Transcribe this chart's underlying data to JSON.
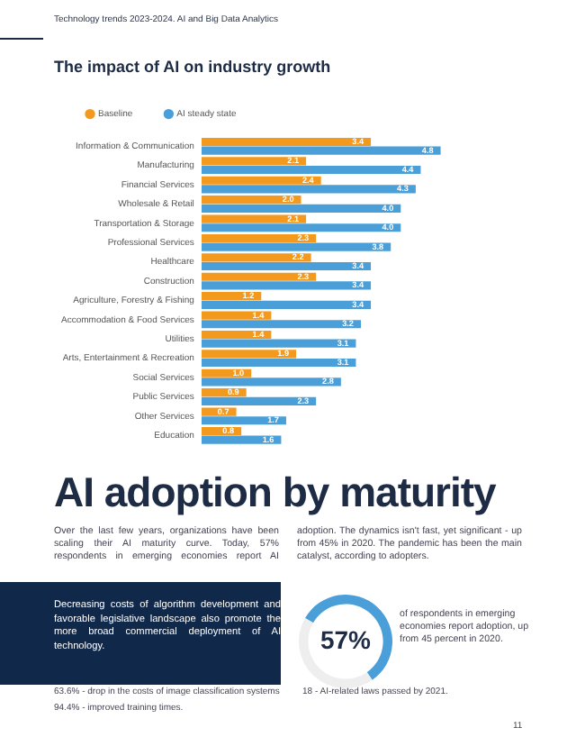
{
  "chart_data": [
    {
      "type": "bar",
      "orientation": "horizontal",
      "title": "The impact of AI on industry growth",
      "annotations": [
        "Technology trends 2023-2024. AI and Big Data Analytics"
      ],
      "categories": [
        "Information & Communication",
        "Manufacturing",
        "Financial Services",
        "Wholesale & Retail",
        "Transportation & Storage",
        "Professional Services",
        "Healthcare",
        "Construction",
        "Agriculture, Forestry & Fishing",
        "Accommodation & Food Services",
        "Utilities",
        "Arts, Entertainment & Recreation",
        "Social Services",
        "Public Services",
        "Other Services",
        "Education"
      ],
      "series": [
        {
          "name": "Baseline",
          "color": "#f39a1e",
          "values": [
            3.4,
            2.1,
            2.4,
            2.0,
            2.1,
            2.3,
            2.2,
            2.3,
            1.2,
            1.4,
            1.4,
            1.9,
            1.0,
            0.9,
            0.7,
            0.8
          ],
          "value_labels": [
            "3.4",
            "2.1",
            "2.4",
            "2.0",
            "2.1",
            "2.3",
            "2.2",
            "2.3",
            "1.2",
            "1.4",
            "1.4",
            "1.9",
            "1.0",
            "0.9",
            "0.7",
            "0.8"
          ]
        },
        {
          "name": "AI steady state",
          "color": "#4a9fd8",
          "values": [
            4.8,
            4.4,
            4.3,
            4.0,
            4.0,
            3.8,
            3.4,
            3.4,
            3.4,
            3.2,
            3.1,
            3.1,
            2.8,
            2.3,
            1.7,
            1.6
          ],
          "value_labels": [
            "4.8",
            "4.4",
            "4.3",
            "4.0",
            "4.0",
            "3.8",
            "3.4",
            "3.4",
            "3.4",
            "3.2",
            "3.1",
            "3.1",
            "2.8",
            "2.3",
            "1.7",
            "1.6"
          ]
        }
      ],
      "legend": "top left",
      "tick_labels": "y",
      "grid": false
    },
    {
      "type": "donut",
      "title": "AI adoption by maturity",
      "categories": [
        null,
        null
      ],
      "values": [
        57,
        43
      ],
      "colors": [
        "#4a9fd8",
        "#eeeeee"
      ],
      "value_labels": [
        "57%",
        null
      ],
      "annotations": [
        "Over the last few years, organizations have been scaling their AI maturity curve. Today, 57% respondents in emerging economies report AI adoption. The dynamics isn't fast, yet significant - up from 45% in 2020. The pandemic has been the main catalyst, according to adopters.",
        "Decreasing costs of algorithm development and favorable legislative landscape also promote the more broad commercial deployment of AI technology.",
        "of respondents in emerging economies report adoption, up from 45 percent in 2020.",
        "63.6% - drop in the costs of image classification systems",
        "94.4% - improved training times.",
        "18 - AI-related laws passed by 2021.",
        "11"
      ]
    }
  ]
}
